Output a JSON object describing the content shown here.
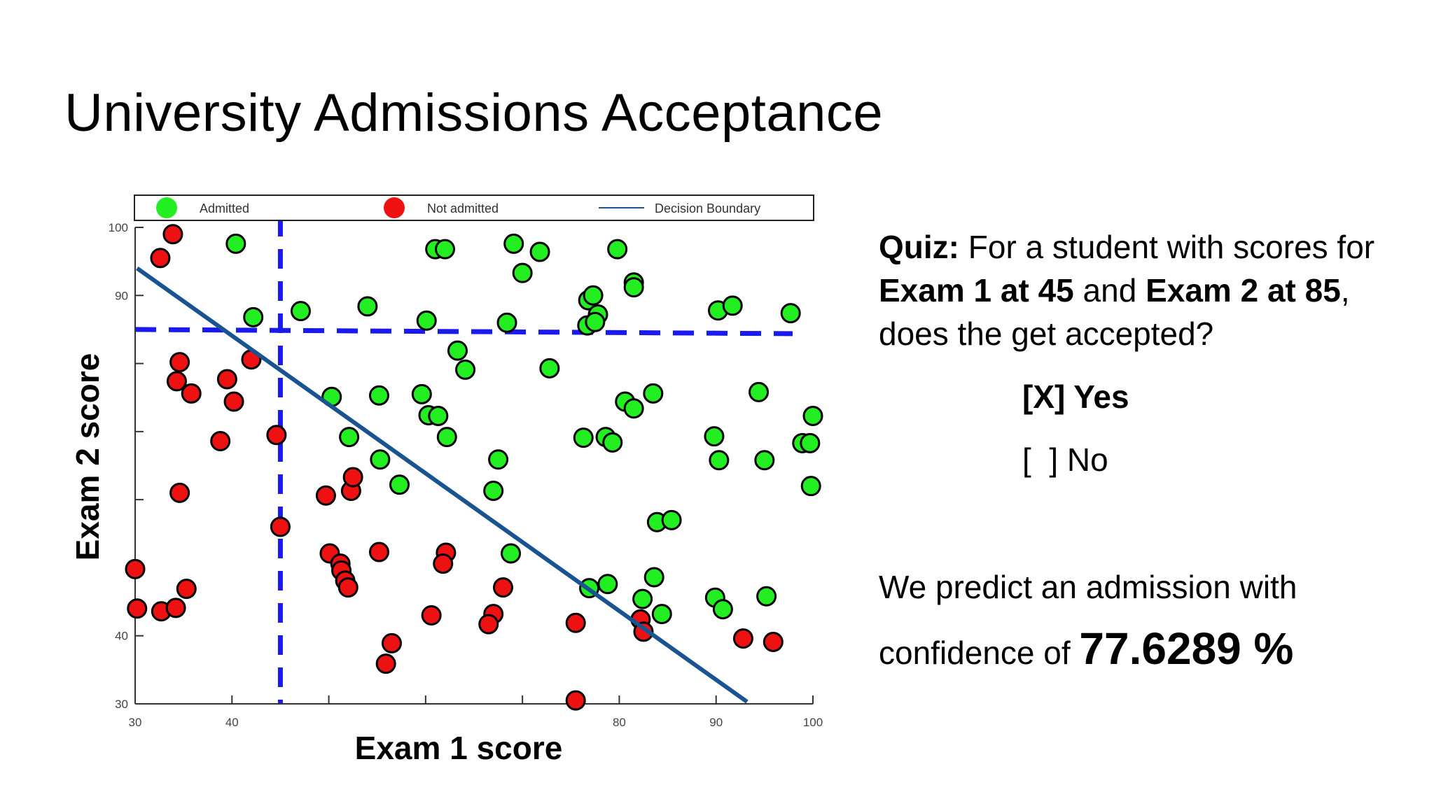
{
  "slide": {
    "title": "University Admissions Acceptance"
  },
  "quiz": {
    "label": "Quiz:",
    "t1": " For a student with scores for ",
    "b1": "Exam 1 at 45",
    "t2": " and ",
    "b2": "Exam 2 at 85",
    "t3": ", does the get accepted?",
    "option_yes": "[X] Yes",
    "option_no": "[  ] No"
  },
  "prediction": {
    "text": "We predict an admission with confidence of ",
    "value": "77.6289 %"
  },
  "colors": {
    "admitted": "#22ee22",
    "not_admitted": "#ee1111",
    "boundary": "#1a5490",
    "guide": "#1a1aee"
  },
  "chart_data": {
    "type": "scatter",
    "title": "",
    "xlabel": "Exam 1 score",
    "ylabel": "Exam 2 score",
    "xlim": [
      30,
      100
    ],
    "ylim": [
      30,
      100
    ],
    "xticks": [
      30,
      40,
      50,
      60,
      70,
      80,
      90,
      100
    ],
    "xtick_labels": [
      "30",
      "40",
      "",
      "",
      "",
      "80",
      "90",
      "100"
    ],
    "yticks": [
      30,
      40,
      50,
      60,
      70,
      80,
      90,
      100
    ],
    "ytick_labels": [
      "30",
      "40",
      "",
      "",
      "",
      "",
      "90",
      "100"
    ],
    "legend": {
      "placement": "top",
      "entries": [
        "Admitted",
        "Not admitted",
        "Decision Boundary"
      ]
    },
    "series": [
      {
        "name": "Admitted",
        "points": [
          [
            40.4,
            97.6
          ],
          [
            42.2,
            86.8
          ],
          [
            47.1,
            87.7
          ],
          [
            54.0,
            88.4
          ],
          [
            60.1,
            86.3
          ],
          [
            61.0,
            96.8
          ],
          [
            62.0,
            96.8
          ],
          [
            68.4,
            86.0
          ],
          [
            69.1,
            97.6
          ],
          [
            70.0,
            93.3
          ],
          [
            71.8,
            96.4
          ],
          [
            76.7,
            85.6
          ],
          [
            76.8,
            89.3
          ],
          [
            77.3,
            90.0
          ],
          [
            77.8,
            87.2
          ],
          [
            77.5,
            86.1
          ],
          [
            79.8,
            96.8
          ],
          [
            81.5,
            91.9
          ],
          [
            81.5,
            91.2
          ],
          [
            90.2,
            87.8
          ],
          [
            91.7,
            88.5
          ],
          [
            97.7,
            87.4
          ],
          [
            63.3,
            81.9
          ],
          [
            64.1,
            79.1
          ],
          [
            72.8,
            79.3
          ],
          [
            55.2,
            75.3
          ],
          [
            59.6,
            75.5
          ],
          [
            60.3,
            72.4
          ],
          [
            61.3,
            72.3
          ],
          [
            62.2,
            69.2
          ],
          [
            50.3,
            75.1
          ],
          [
            52.1,
            69.2
          ],
          [
            55.3,
            65.9
          ],
          [
            57.3,
            62.2
          ],
          [
            67.5,
            65.9
          ],
          [
            67.0,
            61.3
          ],
          [
            68.8,
            52.1
          ],
          [
            76.3,
            69.1
          ],
          [
            78.6,
            69.2
          ],
          [
            79.3,
            68.4
          ],
          [
            80.6,
            74.4
          ],
          [
            81.5,
            73.4
          ],
          [
            83.5,
            75.6
          ],
          [
            89.8,
            69.3
          ],
          [
            90.3,
            65.8
          ],
          [
            94.4,
            75.8
          ],
          [
            95.0,
            65.8
          ],
          [
            98.9,
            68.3
          ],
          [
            99.7,
            68.3
          ],
          [
            99.8,
            62.0
          ],
          [
            100.0,
            72.3
          ],
          [
            83.9,
            56.7
          ],
          [
            85.4,
            57.0
          ],
          [
            76.9,
            47.0
          ],
          [
            78.8,
            47.6
          ],
          [
            82.4,
            45.4
          ],
          [
            83.6,
            48.6
          ],
          [
            84.4,
            43.2
          ],
          [
            89.9,
            45.6
          ],
          [
            90.7,
            43.9
          ],
          [
            95.2,
            45.8
          ]
        ]
      },
      {
        "name": "Not admitted",
        "points": [
          [
            32.6,
            95.5
          ],
          [
            33.9,
            99.0
          ],
          [
            34.6,
            80.2
          ],
          [
            34.3,
            77.4
          ],
          [
            35.8,
            75.6
          ],
          [
            39.5,
            77.7
          ],
          [
            40.2,
            74.4
          ],
          [
            42.0,
            80.6
          ],
          [
            38.8,
            68.6
          ],
          [
            34.6,
            61.0
          ],
          [
            44.6,
            69.5
          ],
          [
            45.0,
            56.0
          ],
          [
            49.7,
            60.6
          ],
          [
            52.3,
            61.3
          ],
          [
            52.5,
            63.3
          ],
          [
            50.1,
            52.1
          ],
          [
            51.2,
            50.6
          ],
          [
            51.3,
            49.6
          ],
          [
            51.7,
            48.1
          ],
          [
            52.0,
            47.1
          ],
          [
            55.2,
            52.3
          ],
          [
            62.1,
            52.2
          ],
          [
            61.8,
            50.6
          ],
          [
            30.0,
            49.8
          ],
          [
            30.2,
            44.0
          ],
          [
            32.7,
            43.6
          ],
          [
            34.2,
            44.1
          ],
          [
            35.3,
            46.9
          ],
          [
            60.6,
            43.0
          ],
          [
            56.5,
            38.9
          ],
          [
            55.9,
            35.9
          ],
          [
            68.0,
            47.1
          ],
          [
            67.0,
            43.2
          ],
          [
            66.5,
            41.7
          ],
          [
            75.5,
            41.9
          ],
          [
            75.5,
            30.5
          ],
          [
            82.2,
            42.4
          ],
          [
            82.5,
            40.6
          ],
          [
            92.8,
            39.6
          ],
          [
            95.9,
            39.1
          ]
        ]
      }
    ],
    "decision_boundary": [
      [
        30.2,
        94.0
      ],
      [
        93.2,
        30.3
      ]
    ],
    "guide_lines": {
      "vertical_x": 45,
      "horizontal_y": 85
    }
  }
}
